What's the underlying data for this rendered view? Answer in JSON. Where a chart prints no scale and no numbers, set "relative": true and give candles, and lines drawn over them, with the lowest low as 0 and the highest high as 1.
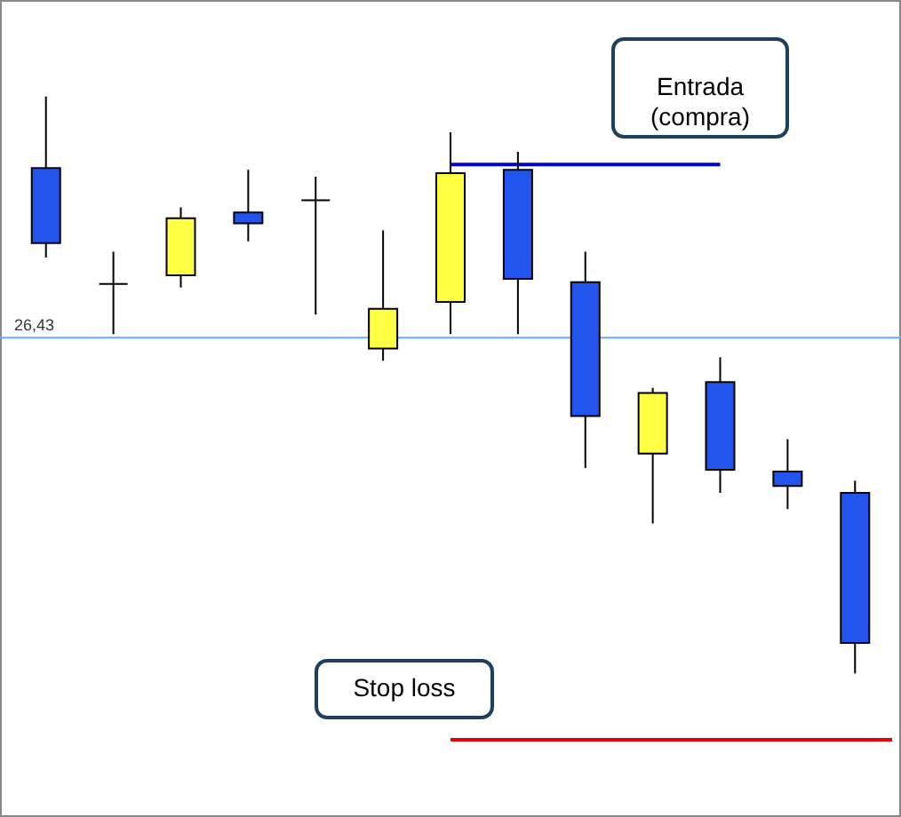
{
  "chart_data": {
    "type": "candlestick",
    "relative": true,
    "categories": [
      null,
      null,
      null,
      null,
      null,
      null,
      null,
      null,
      null,
      null,
      null,
      null,
      null
    ],
    "ohlc": [
      [
        0.876,
        1.0,
        0.721,
        0.746
      ],
      [
        0.675,
        0.731,
        0.588,
        0.675
      ],
      [
        0.69,
        0.808,
        0.669,
        0.789
      ],
      [
        0.799,
        0.873,
        0.749,
        0.78
      ],
      [
        0.82,
        0.861,
        0.622,
        0.82
      ],
      [
        0.563,
        0.768,
        0.542,
        0.632
      ],
      [
        0.644,
        0.938,
        0.588,
        0.867
      ],
      [
        0.873,
        0.904,
        0.588,
        0.684
      ],
      [
        0.678,
        0.731,
        0.356,
        0.446
      ],
      [
        0.381,
        0.495,
        0.26,
        0.486
      ],
      [
        0.505,
        0.548,
        0.313,
        0.353
      ],
      [
        0.35,
        0.406,
        0.285,
        0.325
      ],
      [
        0.313,
        0.334,
        0.0,
        0.053
      ]
    ],
    "colors": [
      "#2255ee",
      "#000000",
      "#ffff44",
      "#2255ee",
      "#000000",
      "#ffff44",
      "#ffff44",
      "#2255ee",
      "#2255ee",
      "#ffff44",
      "#2255ee",
      "#2255ee",
      "#2255ee"
    ],
    "ref_lines": [
      {
        "axis": "y",
        "value": 0.582,
        "color": "#66aaff"
      },
      {
        "axis": "y",
        "value": 0.882,
        "label": "Entrada (compra)",
        "color": "#0000cc"
      },
      {
        "axis": "y",
        "value": -0.115,
        "label": "Stop loss",
        "color": "#ee0000"
      }
    ],
    "annotations": [
      {
        "text": "26,43",
        "y": 0.582
      }
    ]
  }
}
